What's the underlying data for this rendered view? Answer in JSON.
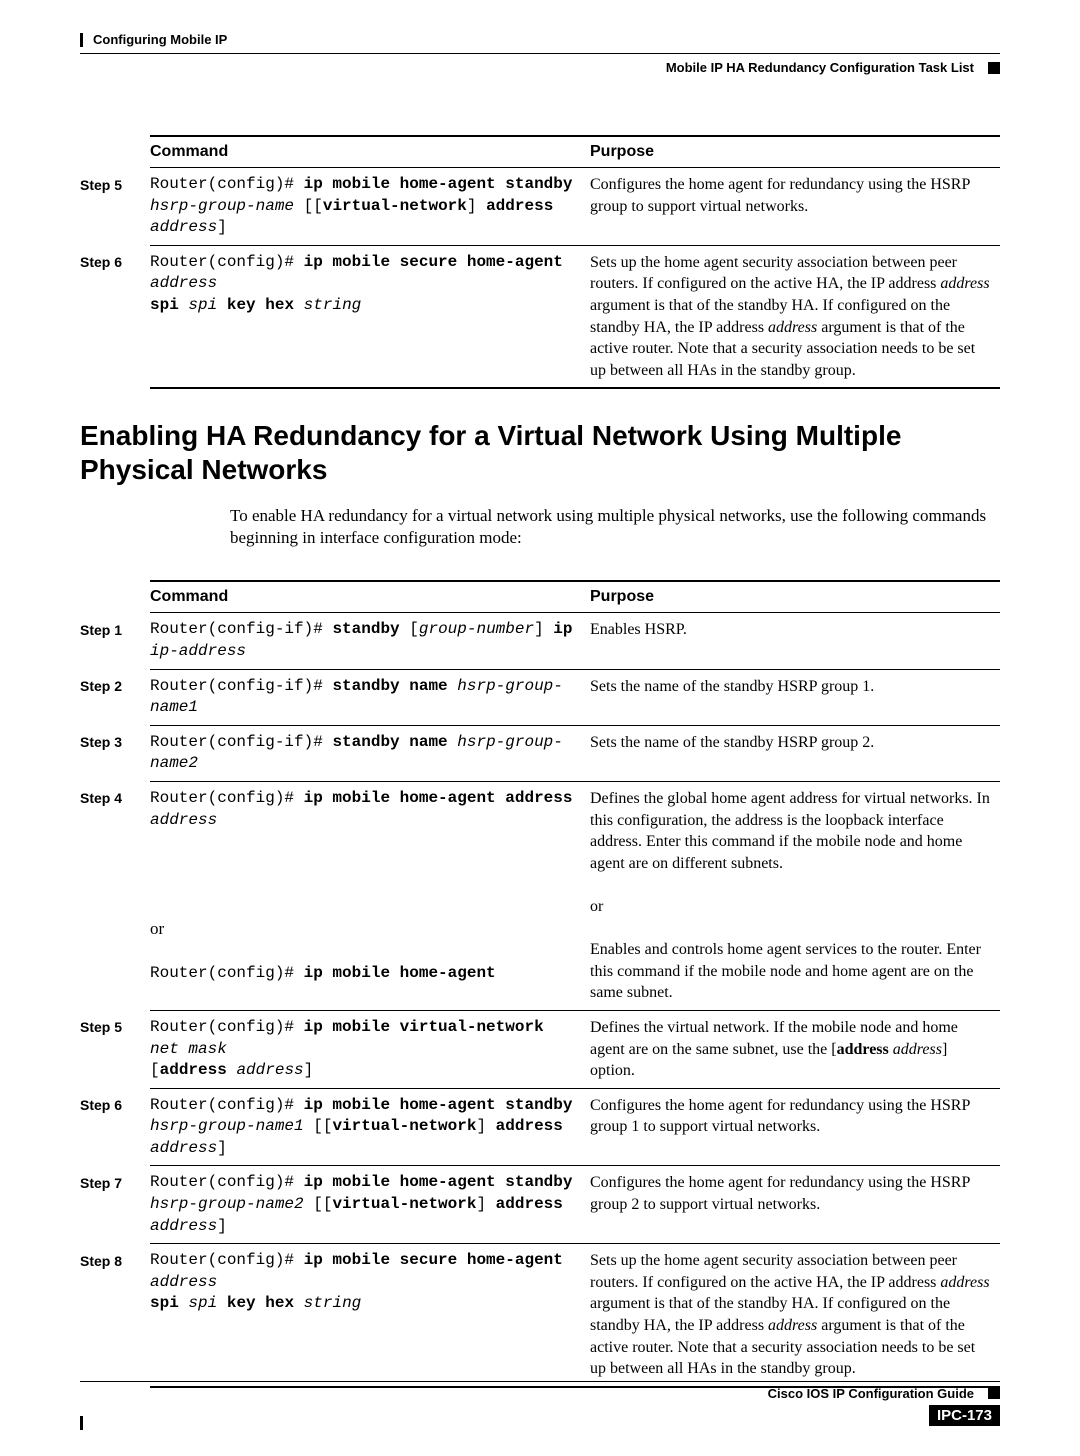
{
  "header": {
    "chapter": "Configuring Mobile IP",
    "section": "Mobile IP HA Redundancy Configuration Task List"
  },
  "table1": {
    "col_command": "Command",
    "col_purpose": "Purpose",
    "rows": [
      {
        "step": "Step 5",
        "purpose": "Configures the home agent for redundancy using the HSRP group to support virtual networks."
      },
      {
        "step": "Step 6",
        "purpose_html": "Sets up the home agent security association between peer routers. If configured on the active HA, the IP address <i>address</i> argument is that of the standby HA. If configured on the standby HA, the IP address <i>address</i> argument is that of the active router. Note that a security association needs to be set up between all HAs in the standby group."
      }
    ]
  },
  "section_title": "Enabling HA Redundancy for a Virtual Network Using Multiple Physical Networks",
  "intro": "To enable HA redundancy for a virtual network using multiple physical networks, use the following commands beginning in interface configuration mode:",
  "table2": {
    "col_command": "Command",
    "col_purpose": "Purpose",
    "steps": {
      "s1": "Step 1",
      "s2": "Step 2",
      "s3": "Step 3",
      "s4": "Step 4",
      "s5": "Step 5",
      "s6": "Step 6",
      "s7": "Step 7",
      "s8": "Step 8"
    },
    "purpose": {
      "p1": "Enables HSRP.",
      "p2": "Sets the name of the standby HSRP group 1.",
      "p3": "Sets the name of the standby HSRP group 2.",
      "p4a": "Defines the global home agent address for virtual networks. In this configuration, the address is the loopback interface address. Enter this command if the mobile node and home agent are on different subnets.",
      "p4or": "or",
      "p4b": "Enables and controls home agent services to the router. Enter this command if the mobile node and home agent are on the same subnet.",
      "p6": "Configures the home agent for redundancy using the HSRP group 1 to support virtual networks.",
      "p7": "Configures the home agent for redundancy using the HSRP group 2 to support virtual networks."
    },
    "cmd4or": "or"
  },
  "footer": {
    "guide": "Cisco IOS IP Configuration Guide",
    "page": "IPC-173"
  }
}
